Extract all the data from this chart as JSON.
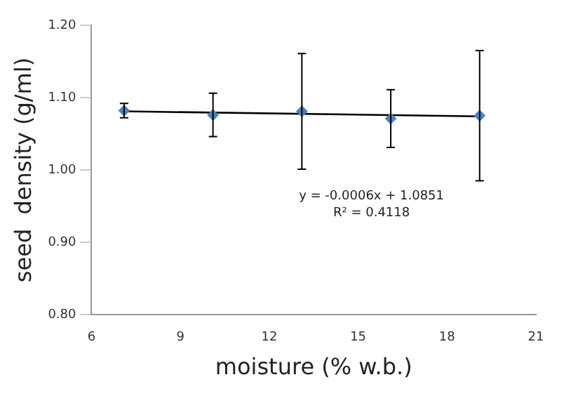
{
  "chart_data": {
    "type": "scatter",
    "xlabel": "moisture (% w.b.)",
    "ylabel": "seed  density (g/ml)",
    "x": [
      7.1,
      10.1,
      13.1,
      16.1,
      19.1
    ],
    "series": [
      {
        "color": "#4f81bd",
        "values": [
          1.082,
          1.076,
          1.081,
          1.071,
          1.075
        ],
        "errors": [
          0.01,
          0.03,
          0.08,
          0.04,
          0.09
        ]
      },
      {
        "type": "line",
        "marker": "none",
        "color": "#000000",
        "x": [
          7.1,
          19.1
        ],
        "values": [
          1.081,
          1.074
        ]
      }
    ],
    "marker": "diamond",
    "xlim": [
      6,
      21
    ],
    "xticks": [
      6,
      9,
      12,
      15,
      18,
      21
    ],
    "ylim": [
      0.8,
      1.2
    ],
    "yticks": [
      {
        "value": 0.8,
        "label": "0.80"
      },
      {
        "value": 0.9,
        "label": "0.90"
      },
      {
        "value": 1.0,
        "label": "1.00"
      },
      {
        "value": 1.1,
        "label": "1.10"
      },
      {
        "value": 1.2,
        "label": "1.20"
      }
    ],
    "grid": false,
    "legend": false,
    "annotations": [
      "y = -0.0006x + 1.0851",
      "R² = 0.4118"
    ]
  }
}
